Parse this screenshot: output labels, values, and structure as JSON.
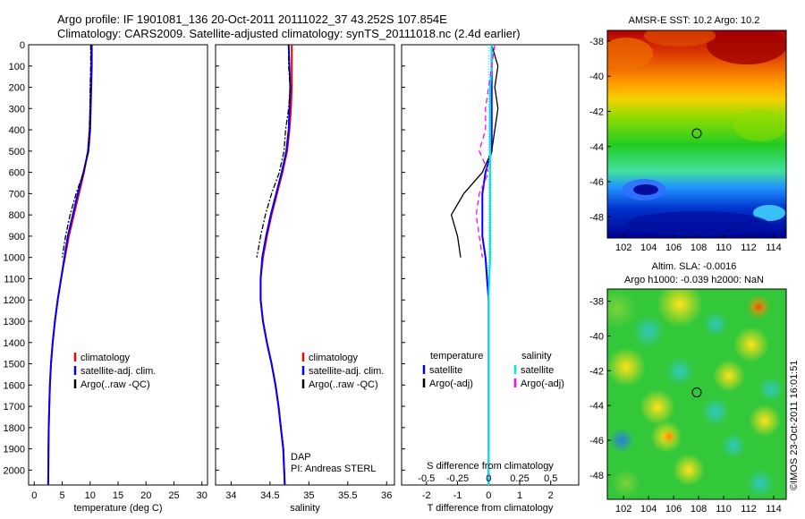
{
  "page": {
    "title_line1": "Argo profile: IF 1901081_136 20-Oct-2011 20111022_37 43.252S 107.854E",
    "title_line2": "Climatology: CARS2009. Satellite-adjusted climatology: synTS_20111018.nc (2.4d earlier)",
    "stamp": "©IMOS 23-Oct-2011 16:01:51"
  },
  "colors": {
    "climatology": "#ff0000",
    "satellite": "#0000ff",
    "argo": "#000000",
    "sal_satellite": "#00e5ee",
    "sal_argo": "#ff00ff"
  },
  "chart_data": [
    {
      "type": "line",
      "id": "temp",
      "xlabel": "temperature (deg C)",
      "xlim": [
        -1,
        31
      ],
      "xticks": [
        0,
        5,
        10,
        15,
        20,
        25,
        30
      ],
      "ylim": [
        2070,
        0
      ],
      "yticks": [
        0,
        100,
        200,
        300,
        400,
        500,
        600,
        700,
        800,
        900,
        1000,
        1100,
        1200,
        1300,
        1400,
        1500,
        1600,
        1700,
        1800,
        1900,
        2000
      ],
      "legend": [
        "climatology",
        "satellite-adj. clim.",
        "Argo(..raw -QC)"
      ],
      "series": [
        {
          "name": "climatology",
          "color": "#ff0000",
          "x": [
            10.2,
            10.2,
            10.1,
            10.0,
            9.9,
            9.6,
            8.9,
            8.0,
            7.1,
            6.2,
            5.5,
            4.8,
            4.2,
            3.7,
            3.3,
            3.0,
            2.8,
            2.7,
            2.6,
            2.55,
            2.5
          ],
          "y": [
            0,
            100,
            200,
            300,
            400,
            500,
            600,
            700,
            800,
            900,
            1000,
            1100,
            1200,
            1300,
            1400,
            1500,
            1600,
            1700,
            1800,
            1900,
            2070
          ]
        },
        {
          "name": "satellite-adj. clim.",
          "color": "#0000ff",
          "x": [
            10.3,
            10.3,
            10.2,
            10.1,
            10.0,
            9.7,
            8.8,
            7.8,
            6.9,
            6.0,
            5.4,
            4.8,
            4.2,
            3.7,
            3.3,
            3.0,
            2.8,
            2.7,
            2.6,
            2.55,
            2.5
          ],
          "y": [
            0,
            100,
            200,
            300,
            400,
            500,
            600,
            700,
            800,
            900,
            1000,
            1100,
            1200,
            1300,
            1400,
            1500,
            1600,
            1700,
            1800,
            1900,
            2070
          ]
        },
        {
          "name": "Argo(..raw -QC)",
          "color": "#000000",
          "x": [
            10.1,
            10.1,
            10.0,
            10.0,
            9.9,
            9.6,
            8.8,
            7.5,
            6.4,
            5.6,
            5.0
          ],
          "y": [
            0,
            100,
            200,
            300,
            400,
            500,
            600,
            700,
            800,
            900,
            1000
          ]
        }
      ]
    },
    {
      "type": "line",
      "id": "sal",
      "xlabel": "salinity",
      "xlim": [
        33.8,
        36.1
      ],
      "xticks": [
        34,
        34.5,
        35,
        35.5,
        36
      ],
      "ylim": [
        2070,
        0
      ],
      "legend": [
        "climatology",
        "satellite-adj. clim.",
        "Argo(..raw -QC)"
      ],
      "annotation": [
        "DAP",
        "PI: Andreas STERL"
      ],
      "series": [
        {
          "name": "climatology",
          "color": "#ff0000",
          "x": [
            34.78,
            34.78,
            34.78,
            34.77,
            34.75,
            34.72,
            34.66,
            34.59,
            34.52,
            34.46,
            34.41,
            34.38,
            34.38,
            34.41,
            34.46,
            34.52,
            34.57,
            34.61,
            34.64,
            34.67,
            34.69
          ],
          "y": [
            0,
            100,
            200,
            300,
            400,
            500,
            600,
            700,
            800,
            900,
            1000,
            1100,
            1200,
            1300,
            1400,
            1500,
            1600,
            1700,
            1800,
            1900,
            2070
          ]
        },
        {
          "name": "satellite-adj. clim.",
          "color": "#0000ff",
          "x": [
            34.74,
            34.75,
            34.76,
            34.75,
            34.74,
            34.71,
            34.65,
            34.58,
            34.51,
            34.45,
            34.4,
            34.38,
            34.38,
            34.41,
            34.46,
            34.52,
            34.57,
            34.61,
            34.64,
            34.67,
            34.69
          ],
          "y": [
            0,
            100,
            200,
            300,
            400,
            500,
            600,
            700,
            800,
            900,
            1000,
            1100,
            1200,
            1300,
            1400,
            1500,
            1600,
            1700,
            1800,
            1900,
            2070
          ]
        },
        {
          "name": "Argo(..raw -QC)",
          "color": "#000000",
          "x": [
            34.74,
            34.74,
            34.76,
            34.74,
            34.7,
            34.68,
            34.62,
            34.52,
            34.44,
            34.38,
            34.33
          ],
          "y": [
            0,
            100,
            200,
            300,
            400,
            500,
            600,
            700,
            800,
            900,
            1000
          ]
        }
      ]
    },
    {
      "type": "line",
      "id": "diff",
      "xlabel": "T difference from climatology",
      "xlabel_top": "S difference from climatology",
      "xlim": [
        -2.8,
        2.9
      ],
      "xticks": [
        -2,
        -1,
        0,
        1,
        2
      ],
      "xticks_top": [
        "-0.5",
        "-0.25",
        "0",
        "0.25",
        "0.5"
      ],
      "xticks_top_pos": [
        -2,
        -1,
        0,
        1,
        2
      ],
      "ylim": [
        2070,
        0
      ],
      "legend_headers": [
        "temperature",
        "salinity"
      ],
      "legend": [
        "satellite",
        "Argo(-adj)",
        "satellite",
        "Argo(-adj)"
      ],
      "series": [
        {
          "name": "T satellite",
          "color": "#0000ff",
          "x": [
            0.1,
            0.1,
            0.1,
            0.1,
            0.1,
            0.1,
            -0.1,
            -0.2,
            -0.2,
            -0.2,
            -0.1,
            -0.05,
            0,
            0,
            0,
            0,
            0,
            0,
            0,
            0,
            0
          ],
          "y": [
            0,
            100,
            200,
            300,
            400,
            500,
            600,
            700,
            800,
            900,
            1000,
            1100,
            1200,
            1300,
            1400,
            1500,
            1600,
            1700,
            1800,
            1900,
            2070
          ]
        },
        {
          "name": "T Argo(-adj)",
          "color": "#000000",
          "x": [
            0.1,
            0.3,
            0.2,
            0.3,
            0.2,
            0.1,
            -0.2,
            -0.8,
            -1.2,
            -1.0,
            -0.9
          ],
          "y": [
            0,
            100,
            200,
            300,
            400,
            500,
            600,
            700,
            800,
            900,
            1000
          ]
        },
        {
          "name": "S satellite",
          "color": "#00e5ee",
          "x": [
            0.1,
            0.1,
            0.05,
            0.05,
            0.05,
            0.05,
            0.05,
            0.05,
            0.05,
            0.05,
            0.05,
            0.02,
            0,
            0,
            0,
            0,
            0,
            0,
            0,
            0,
            0
          ],
          "y": [
            0,
            100,
            200,
            300,
            400,
            500,
            600,
            700,
            800,
            900,
            1000,
            1100,
            1200,
            1300,
            1400,
            1500,
            1600,
            1700,
            1800,
            1900,
            2070
          ]
        },
        {
          "name": "S Argo(-adj)",
          "color": "#ff00ff",
          "x": [
            0.2,
            0.1,
            0.0,
            -0.1,
            -0.1,
            -0.3,
            0.0,
            -0.3,
            -0.4,
            -0.3,
            -0.2
          ],
          "y": [
            0,
            100,
            200,
            300,
            400,
            500,
            600,
            700,
            800,
            900,
            1000
          ]
        }
      ]
    },
    {
      "type": "heatmap",
      "id": "sst",
      "title": "AMSR-E SST: 10.2  Argo: 10.2",
      "xlim": [
        100.7,
        115
      ],
      "xticks": [
        102,
        104,
        106,
        108,
        110,
        112,
        114
      ],
      "ylim": [
        -49.2,
        -37.4
      ],
      "yticks": [
        -38,
        -40,
        -42,
        -44,
        -46,
        -48
      ],
      "marker": [
        107.85,
        -43.25
      ]
    },
    {
      "type": "heatmap",
      "id": "sla",
      "title_line1": "Altim. SLA: -0.0016",
      "title_line2": "Argo h1000: -0.039  h2000: NaN",
      "xlim": [
        100.7,
        115
      ],
      "xticks": [
        102,
        104,
        106,
        108,
        110,
        112,
        114
      ],
      "ylim": [
        -49.4,
        -37.3
      ],
      "yticks": [
        -38,
        -40,
        -42,
        -44,
        -46,
        -48
      ],
      "marker": [
        107.85,
        -43.25
      ]
    }
  ]
}
